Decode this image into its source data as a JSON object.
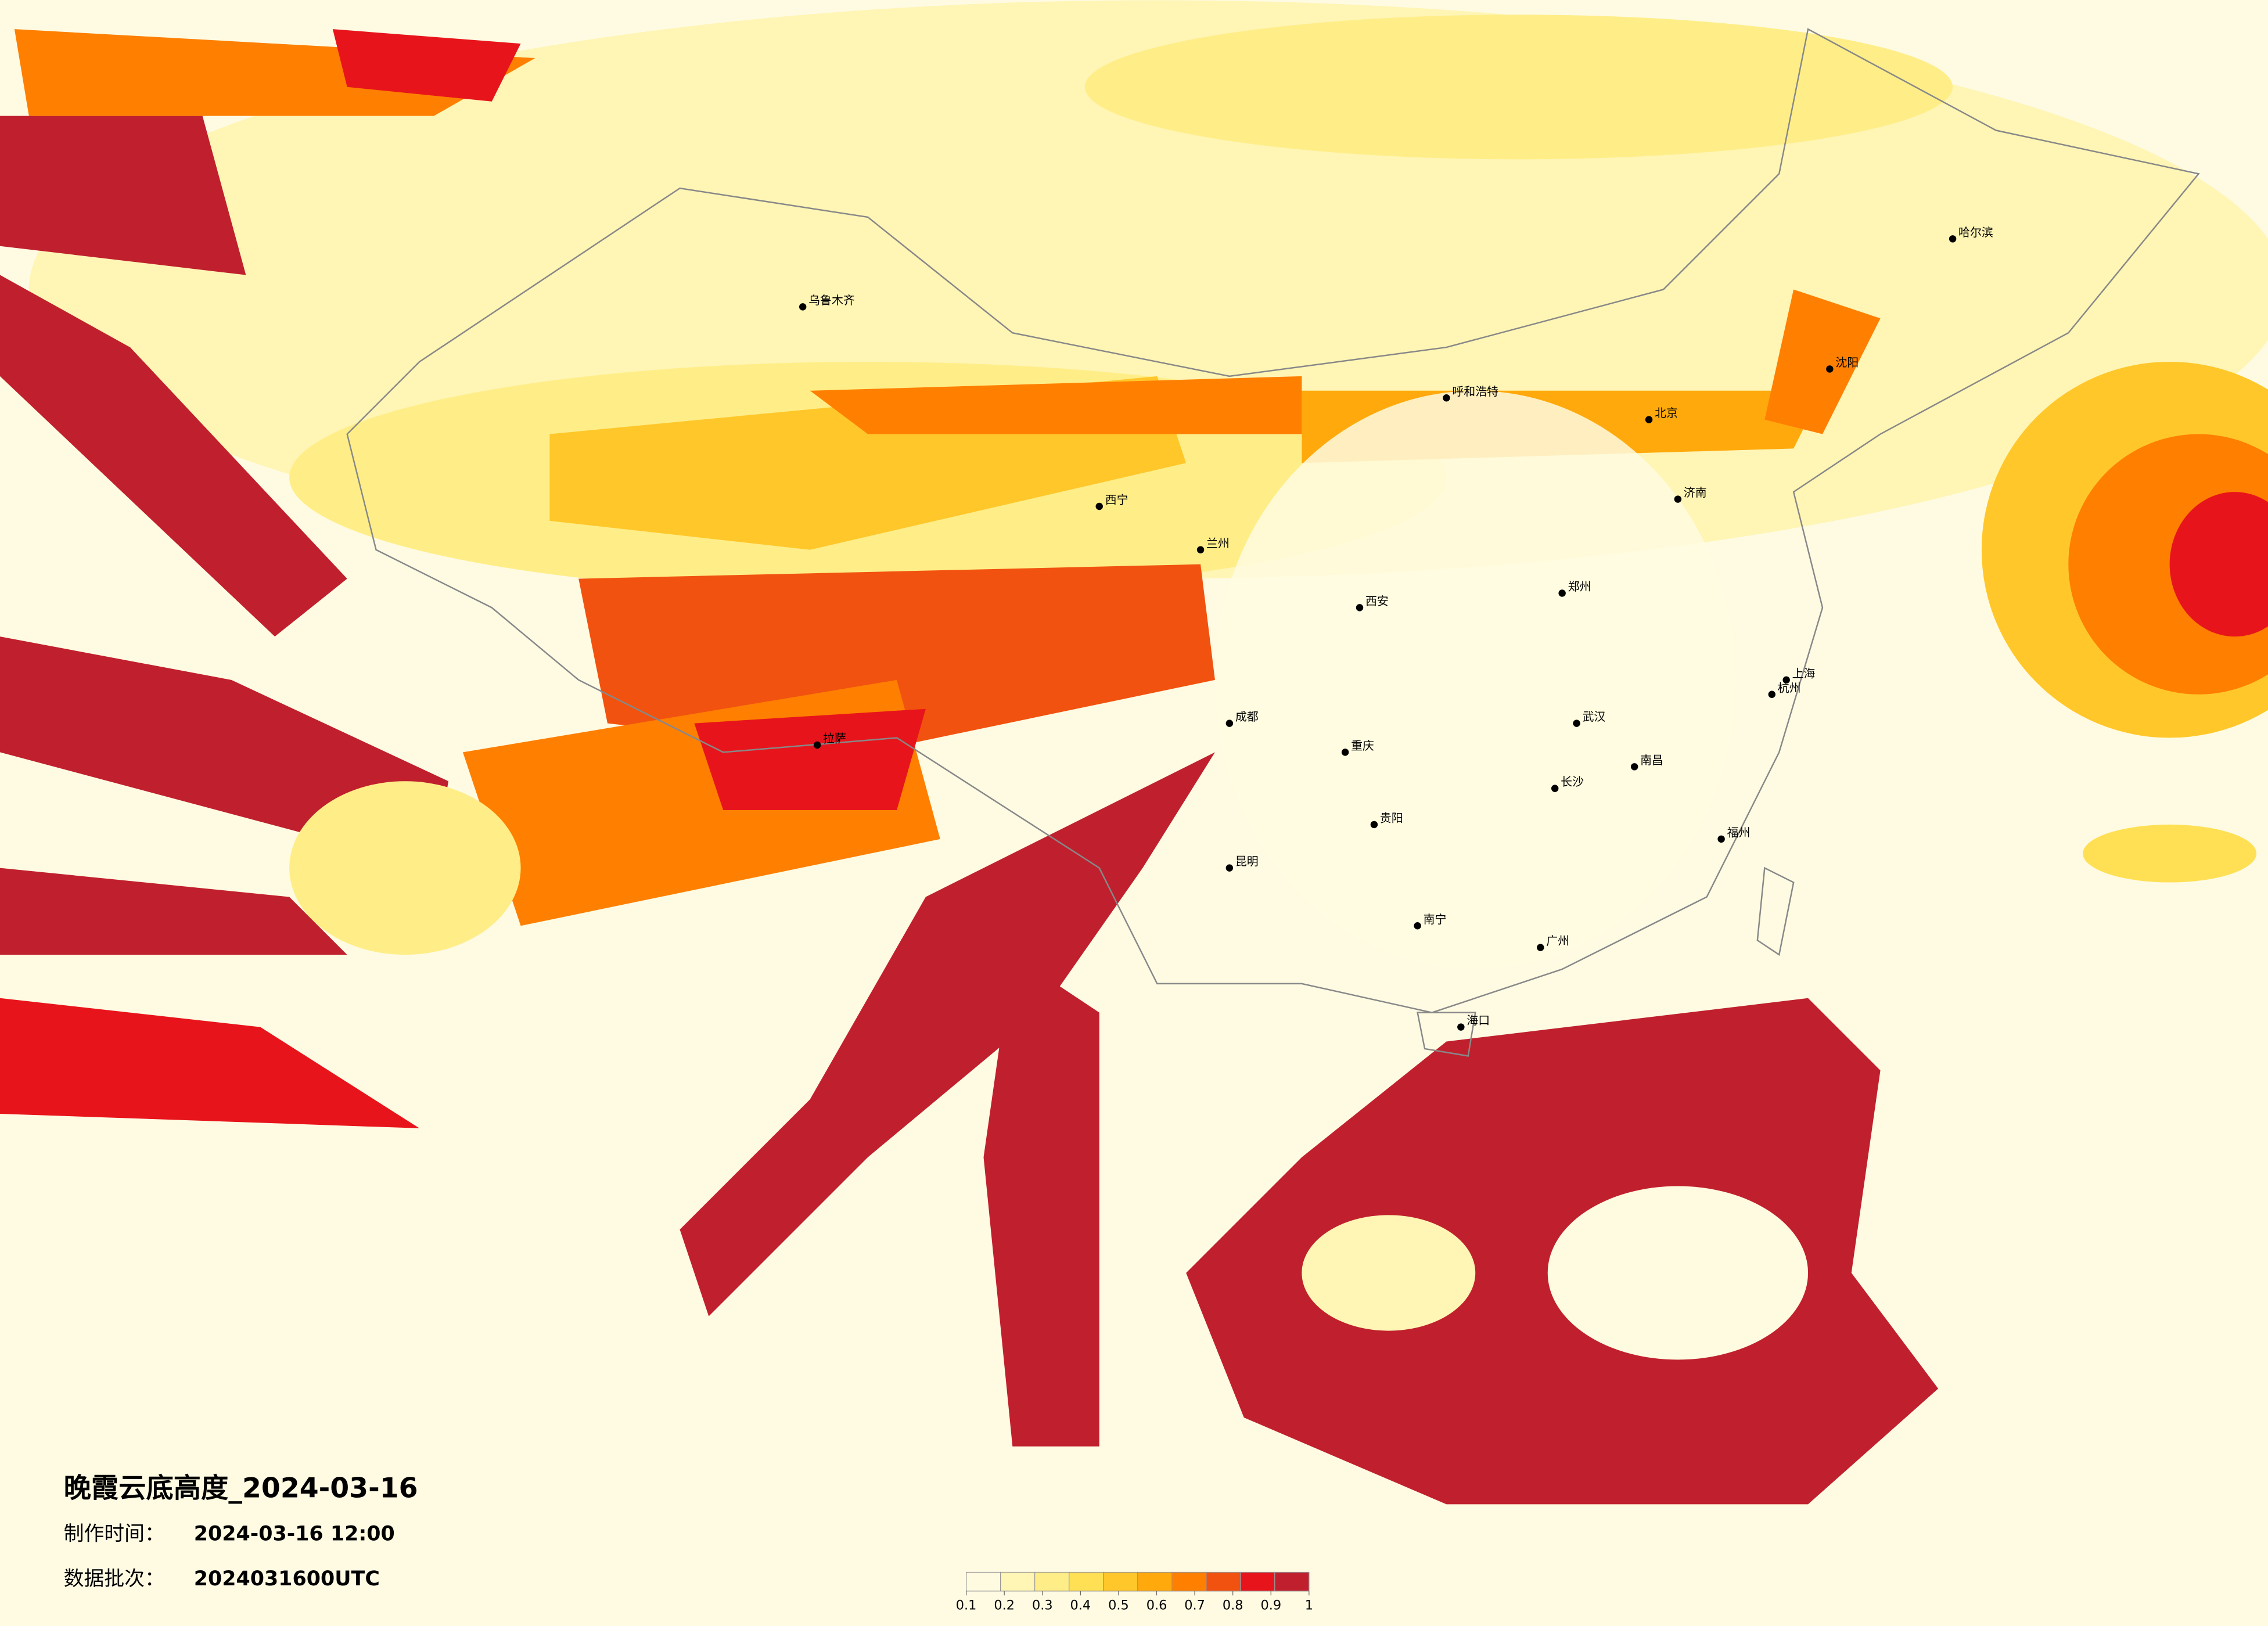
{
  "title": "晚霞云底高度_2024-03-16",
  "info": [
    {
      "label": "制作时间：",
      "value": "2024-03-16 12:00"
    },
    {
      "label": "数据批次：",
      "value": "2024031600UTC"
    }
  ],
  "colorbar": {
    "colors": [
      "#fffbe0",
      "#fff5b5",
      "#ffee88",
      "#ffe055",
      "#ffc72a",
      "#ffa90c",
      "#ff7f00",
      "#f2520f",
      "#e8141b",
      "#c0202e"
    ],
    "ticks": [
      0.1,
      0.2,
      0.3,
      0.4,
      0.5,
      0.6,
      0.7,
      0.8,
      0.9,
      1
    ]
  },
  "cities": [
    "北京",
    "上海",
    "广州",
    "成都",
    "武汉",
    "西安",
    "兰州",
    "乌鲁木齐",
    "拉萨",
    "哈尔滨",
    "沈阳",
    "昆明",
    "重庆",
    "长沙",
    "南宁",
    "杭州",
    "郑州",
    "济南",
    "贵阳",
    "西宁",
    "呼和浩特",
    "福州",
    "南昌",
    "海口"
  ]
}
